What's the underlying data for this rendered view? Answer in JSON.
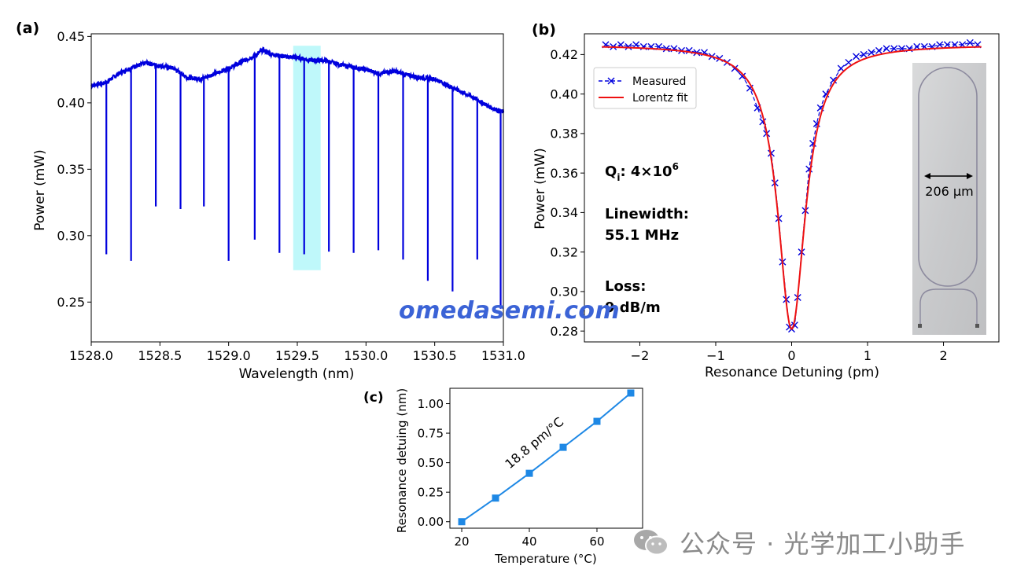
{
  "watermark": "omedasemi.com",
  "wechat": {
    "icon": "wechat-icon",
    "text": "公众号 · 光学加工小助手",
    "color": "#8a8a8a"
  },
  "colors": {
    "blue_line": "#0000dd",
    "red_fit": "#ee1111",
    "highlight": "#bff8fa",
    "marker_c": "#1e88e5"
  },
  "chart_data": [
    {
      "id": "a",
      "panel_label": "(a)",
      "type": "line",
      "title": "",
      "xlabel": "Wavelength (nm)",
      "ylabel": "Power (mW)",
      "xlim": [
        1528.0,
        1531.0
      ],
      "ylim": [
        0.22,
        0.452
      ],
      "xticks": [
        1528.0,
        1528.5,
        1529.0,
        1529.5,
        1530.0,
        1530.5,
        1531.0
      ],
      "xtick_labels": [
        "1528.0",
        "1528.5",
        "1529.0",
        "1529.5",
        "1530.0",
        "1530.5",
        "1531.0"
      ],
      "yticks": [
        0.25,
        0.3,
        0.35,
        0.4,
        0.45
      ],
      "ytick_labels": [
        "0.25",
        "0.30",
        "0.35",
        "0.40",
        "0.45"
      ],
      "baseline": {
        "x": [
          1528.0,
          1528.1,
          1528.2,
          1528.3,
          1528.4,
          1528.5,
          1528.6,
          1528.7,
          1528.8,
          1528.9,
          1529.0,
          1529.1,
          1529.2,
          1529.25,
          1529.3,
          1529.4,
          1529.5,
          1529.6,
          1529.7,
          1529.8,
          1529.9,
          1530.0,
          1530.1,
          1530.2,
          1530.3,
          1530.4,
          1530.5,
          1530.6,
          1530.7,
          1530.8,
          1530.9,
          1531.0
        ],
        "y": [
          0.413,
          0.415,
          0.422,
          0.427,
          0.43,
          0.428,
          0.426,
          0.419,
          0.418,
          0.422,
          0.426,
          0.431,
          0.436,
          0.44,
          0.437,
          0.435,
          0.434,
          0.432,
          0.432,
          0.429,
          0.427,
          0.425,
          0.422,
          0.424,
          0.421,
          0.419,
          0.418,
          0.413,
          0.408,
          0.403,
          0.397,
          0.393
        ]
      },
      "resonance_dips": [
        {
          "x": 1528.11,
          "y": 0.286
        },
        {
          "x": 1528.29,
          "y": 0.281
        },
        {
          "x": 1528.47,
          "y": 0.322
        },
        {
          "x": 1528.65,
          "y": 0.32
        },
        {
          "x": 1528.82,
          "y": 0.322
        },
        {
          "x": 1529.0,
          "y": 0.281
        },
        {
          "x": 1529.19,
          "y": 0.297
        },
        {
          "x": 1529.37,
          "y": 0.287
        },
        {
          "x": 1529.55,
          "y": 0.286
        },
        {
          "x": 1529.73,
          "y": 0.288
        },
        {
          "x": 1529.91,
          "y": 0.287
        },
        {
          "x": 1530.09,
          "y": 0.289
        },
        {
          "x": 1530.27,
          "y": 0.282
        },
        {
          "x": 1530.45,
          "y": 0.266
        },
        {
          "x": 1530.63,
          "y": 0.258
        },
        {
          "x": 1530.81,
          "y": 0.282
        },
        {
          "x": 1530.98,
          "y": 0.245
        }
      ],
      "highlight_range": [
        1529.47,
        1529.67
      ]
    },
    {
      "id": "b",
      "panel_label": "(b)",
      "type": "scatter",
      "title": "",
      "xlabel": "Resonance Detuning (pm)",
      "ylabel": "Power (mW)",
      "xlim": [
        -2.73,
        2.73
      ],
      "ylim": [
        0.2745,
        0.4305
      ],
      "xticks": [
        -2,
        -1,
        0,
        1,
        2
      ],
      "xtick_labels": [
        "−2",
        "−1",
        "0",
        "1",
        "2"
      ],
      "yticks": [
        0.28,
        0.3,
        0.32,
        0.34,
        0.36,
        0.38,
        0.4,
        0.42
      ],
      "ytick_labels": [
        "0.28",
        "0.30",
        "0.32",
        "0.34",
        "0.36",
        "0.38",
        "0.40",
        "0.42"
      ],
      "lorentz_fit": {
        "center": 0.0,
        "fwhm": 0.44,
        "baseline": 0.425,
        "min": 0.281
      },
      "measured": {
        "x": [
          -2.45,
          -2.35,
          -2.25,
          -2.15,
          -2.05,
          -1.95,
          -1.85,
          -1.75,
          -1.65,
          -1.55,
          -1.45,
          -1.35,
          -1.25,
          -1.15,
          -1.05,
          -0.95,
          -0.85,
          -0.75,
          -0.65,
          -0.55,
          -0.45,
          -0.38,
          -0.33,
          -0.27,
          -0.22,
          -0.17,
          -0.12,
          -0.07,
          -0.03,
          0.0,
          0.04,
          0.08,
          0.13,
          0.18,
          0.23,
          0.28,
          0.33,
          0.38,
          0.45,
          0.55,
          0.65,
          0.75,
          0.85,
          0.95,
          1.05,
          1.15,
          1.25,
          1.35,
          1.45,
          1.55,
          1.65,
          1.75,
          1.85,
          1.95,
          2.05,
          2.15,
          2.25,
          2.35,
          2.45
        ],
        "y": [
          0.425,
          0.424,
          0.425,
          0.424,
          0.425,
          0.424,
          0.424,
          0.424,
          0.423,
          0.423,
          0.422,
          0.422,
          0.421,
          0.421,
          0.419,
          0.418,
          0.416,
          0.413,
          0.409,
          0.403,
          0.393,
          0.386,
          0.38,
          0.37,
          0.355,
          0.337,
          0.315,
          0.296,
          0.282,
          0.281,
          0.283,
          0.297,
          0.32,
          0.341,
          0.362,
          0.375,
          0.385,
          0.393,
          0.4,
          0.407,
          0.413,
          0.416,
          0.419,
          0.42,
          0.421,
          0.422,
          0.423,
          0.423,
          0.423,
          0.423,
          0.424,
          0.424,
          0.424,
          0.425,
          0.425,
          0.425,
          0.425,
          0.426,
          0.425
        ]
      },
      "legend": {
        "position": "upper-left",
        "entries": [
          "Measured",
          "Lorentz fit"
        ]
      },
      "annotations": {
        "qi_base": "Q",
        "qi_sub": "i",
        "qi_value": ": 4×10",
        "qi_exp": "6",
        "linewidth_label": "Linewidth:",
        "linewidth_value": "55.1 MHz",
        "loss_label": "Loss:",
        "loss_value": "9 dB/m",
        "inset_dimension": "206 μm"
      }
    },
    {
      "id": "c",
      "panel_label": "(c)",
      "type": "line",
      "title": "",
      "xlabel": "Temperature (°C)",
      "ylabel": "Resonance detuing (nm)",
      "xlim": [
        16.5,
        73.5
      ],
      "ylim": [
        -0.055,
        1.13
      ],
      "xticks": [
        20,
        40,
        60
      ],
      "xtick_labels": [
        "20",
        "40",
        "60"
      ],
      "yticks": [
        0.0,
        0.25,
        0.5,
        0.75,
        1.0
      ],
      "ytick_labels": [
        "0.00",
        "0.25",
        "0.50",
        "0.75",
        "1.00"
      ],
      "x": [
        20,
        30,
        40,
        50,
        60,
        70
      ],
      "y": [
        0.0,
        0.2,
        0.41,
        0.63,
        0.85,
        1.09
      ],
      "annotation": "18.8 pm/°C"
    }
  ]
}
